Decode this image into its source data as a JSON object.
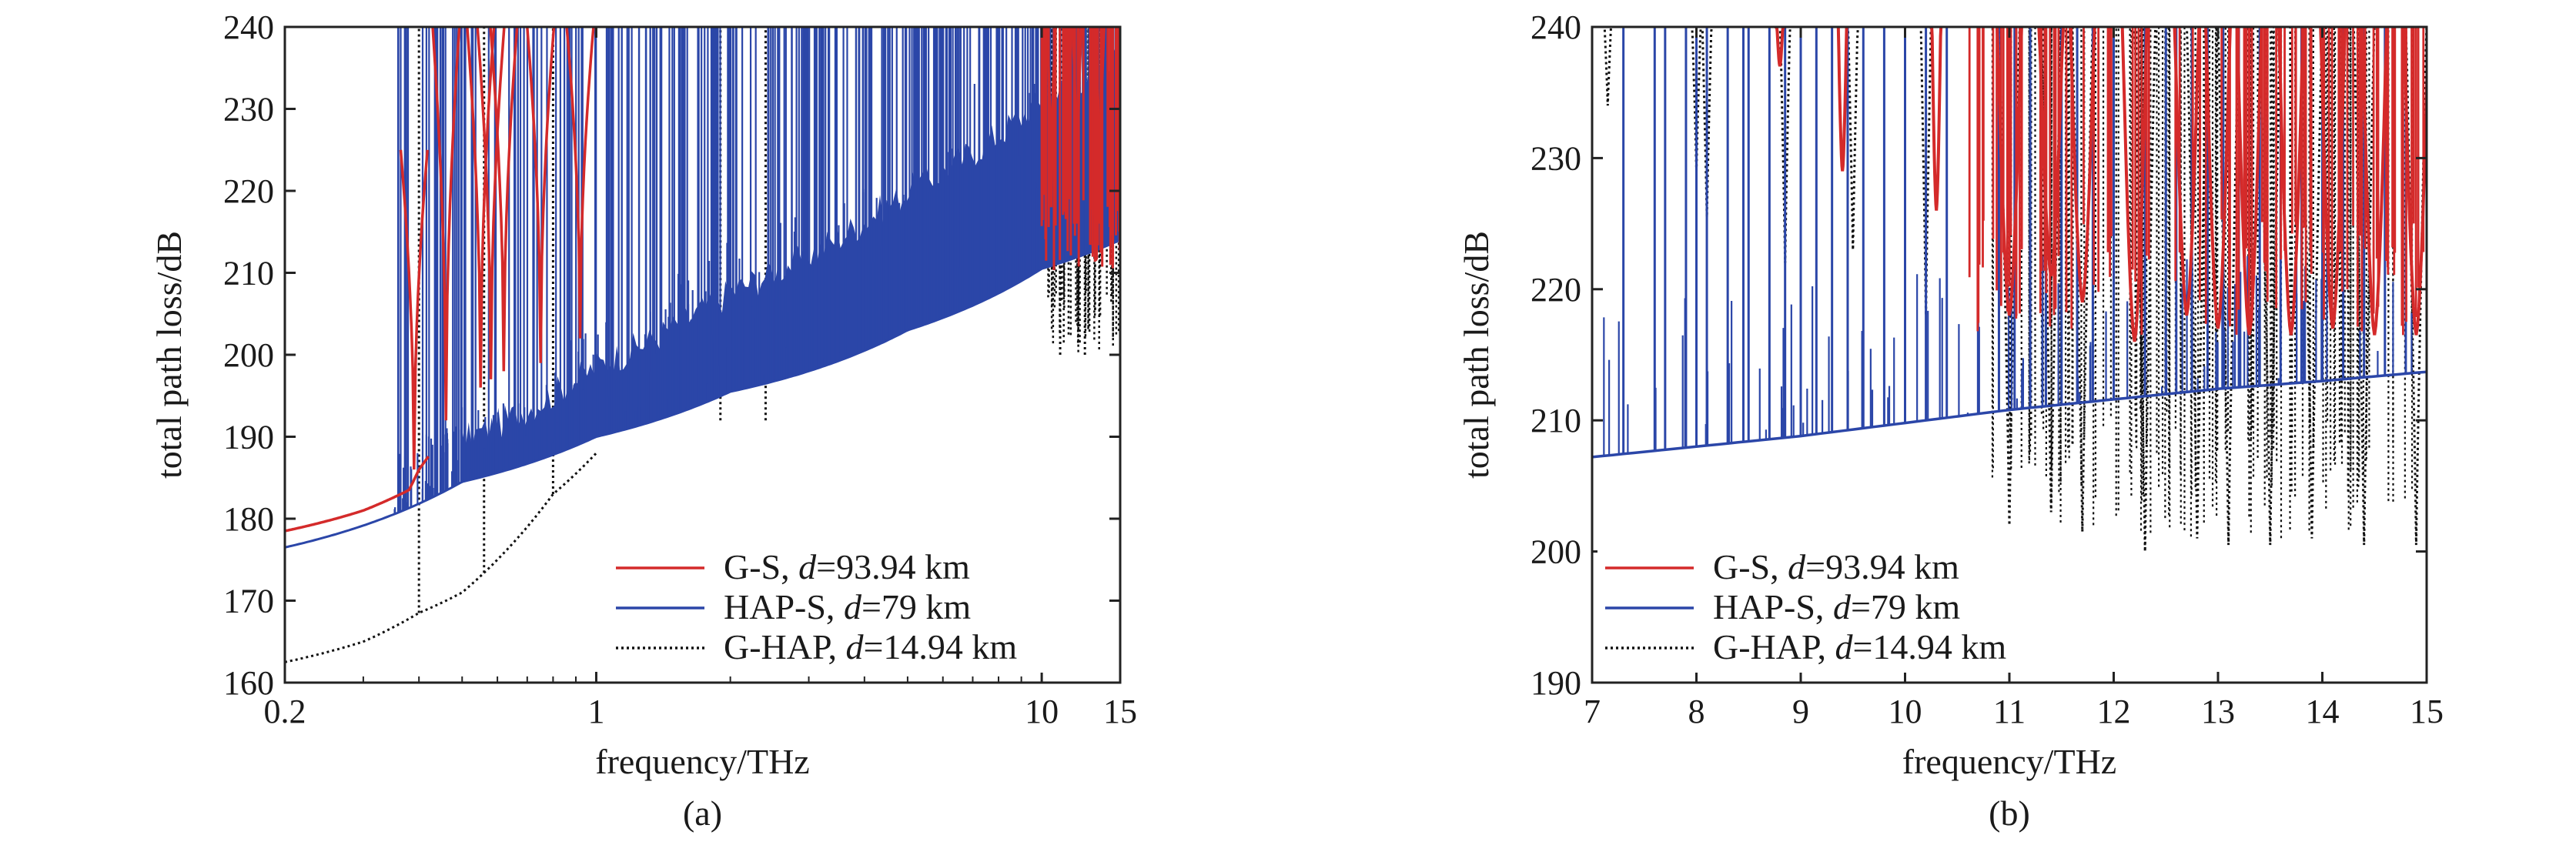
{
  "colors": {
    "gs": "#d42a2a",
    "haps": "#2b46a8",
    "ghap": "#111111",
    "axis": "#222222"
  },
  "chart_data": [
    {
      "type": "line",
      "panel": "(a)",
      "caption": "(a)",
      "xlabel": "frequency/THz",
      "ylabel": "total path loss/dB",
      "xscale": "log",
      "xlim": [
        0.2,
        15
      ],
      "ylim": [
        160,
        240
      ],
      "xticks": [
        0.2,
        1,
        10,
        15
      ],
      "xtick_labels": [
        "0.2",
        "1",
        "10",
        "15"
      ],
      "yticks": [
        160,
        170,
        180,
        190,
        200,
        210,
        220,
        230,
        240
      ],
      "ytick_labels": [
        "160",
        "170",
        "180",
        "190",
        "200",
        "210",
        "220",
        "230",
        "240"
      ],
      "legend_position": "lower-right",
      "legend": [
        {
          "prefix": "G-S, ",
          "ital": "d",
          "suffix": "=93.94 km",
          "series": "gs"
        },
        {
          "prefix": "HAP-S, ",
          "ital": "d",
          "suffix": "=79 km",
          "series": "haps"
        },
        {
          "prefix": "G-HAP, ",
          "ital": "d",
          "suffix": "=14.94 km",
          "series": "ghap"
        }
      ],
      "series": [
        {
          "key": "gs",
          "label": "G-S, d=93.94 km",
          "x": [
            0.2,
            0.3,
            0.38,
            0.4,
            0.45,
            0.5,
            0.52,
            0.55,
            0.6,
            0.65,
            0.7,
            0.75,
            0.8,
            0.85,
            0.9,
            1.0
          ],
          "y": [
            178.5,
            181,
            183.5,
            186,
            190,
            196,
            240,
            210,
            201,
            199,
            203,
            240,
            204,
            202,
            205,
            210
          ],
          "peaks": [
            {
              "x": 0.39,
              "base": 186,
              "top": 225
            },
            {
              "x": 0.46,
              "base": 192,
              "top": 240
            },
            {
              "x": 0.55,
              "base": 196,
              "top": 240
            },
            {
              "x": 0.58,
              "base": 197,
              "top": 240
            },
            {
              "x": 0.62,
              "base": 198,
              "top": 240
            },
            {
              "x": 0.75,
              "base": 199,
              "top": 240
            },
            {
              "x": 0.92,
              "base": 202,
              "top": 240
            },
            {
              "x": 10.5,
              "base": 218,
              "top": 240
            },
            {
              "x": 12.0,
              "base": 216,
              "top": 240
            },
            {
              "x": 13.5,
              "base": 216,
              "top": 240
            }
          ]
        },
        {
          "key": "haps",
          "label": "HAP-S, d=79 km",
          "x": [
            0.2,
            0.5,
            1.0,
            2.0,
            5.0,
            10.0,
            15.0
          ],
          "y": [
            176.5,
            184.5,
            190,
            195.5,
            203,
            210.5,
            214
          ],
          "spike_density": "dense",
          "spike_top": 240
        },
        {
          "key": "ghap",
          "label": "G-HAP, d=14.94 km",
          "x": [
            0.2,
            0.3,
            0.4,
            0.5,
            0.6,
            0.8,
            1.0
          ],
          "y": [
            162.5,
            165,
            168.5,
            171,
            175,
            183,
            188
          ],
          "dips": [
            {
              "x": 0.4,
              "top": 240
            },
            {
              "x": 0.56,
              "top": 240
            },
            {
              "x": 0.8,
              "top": 240
            },
            {
              "x": 1.9,
              "top": 240
            },
            {
              "x": 2.4,
              "top": 240
            },
            {
              "x": 11.0,
              "top": 240
            },
            {
              "x": 12.5,
              "top": 240
            }
          ]
        }
      ]
    },
    {
      "type": "line",
      "panel": "(b)",
      "caption": "(b)",
      "xlabel": "frequency/THz",
      "ylabel": "total path loss/dB",
      "xscale": "linear",
      "xlim": [
        7,
        15
      ],
      "ylim": [
        190,
        240
      ],
      "xticks": [
        7,
        8,
        9,
        10,
        11,
        12,
        13,
        14,
        15
      ],
      "xtick_labels": [
        "7",
        "8",
        "9",
        "10",
        "11",
        "12",
        "13",
        "14",
        "15"
      ],
      "yticks": [
        190,
        200,
        210,
        220,
        230,
        240
      ],
      "ytick_labels": [
        "190",
        "200",
        "210",
        "220",
        "230",
        "240"
      ],
      "legend_position": "lower-left",
      "legend": [
        {
          "prefix": "G-S, ",
          "ital": "d",
          "suffix": "=93.94 km",
          "series": "gs"
        },
        {
          "prefix": "HAP-S, ",
          "ital": "d",
          "suffix": "=79 km",
          "series": "haps"
        },
        {
          "prefix": "G-HAP, ",
          "ital": "d",
          "suffix": "=14.94 km",
          "series": "ghap"
        }
      ],
      "series": [
        {
          "key": "gs",
          "label": "G-S, d=93.94 km",
          "floor": [
            {
              "x": 8.8,
              "y": 237
            },
            {
              "x": 9.4,
              "y": 229
            },
            {
              "x": 10.3,
              "y": 226
            },
            {
              "x": 11.0,
              "y": 218
            },
            {
              "x": 11.4,
              "y": 221
            },
            {
              "x": 11.7,
              "y": 219
            },
            {
              "x": 12.2,
              "y": 216
            },
            {
              "x": 12.7,
              "y": 218
            },
            {
              "x": 13.0,
              "y": 217
            },
            {
              "x": 13.3,
              "y": 216.5
            },
            {
              "x": 13.7,
              "y": 216.5
            },
            {
              "x": 14.1,
              "y": 217
            },
            {
              "x": 14.5,
              "y": 216.5
            },
            {
              "x": 14.9,
              "y": 216.5
            }
          ]
        },
        {
          "key": "haps",
          "label": "HAP-S, d=79 km",
          "x": [
            7,
            8,
            9,
            10,
            11,
            12,
            13,
            14,
            15
          ],
          "y": [
            207.2,
            208,
            208.8,
            209.8,
            210.8,
            211.6,
            212.4,
            213,
            213.7
          ],
          "spikes": [
            7.3,
            7.6,
            7.7,
            7.9,
            8.0,
            8.1,
            8.3,
            8.45,
            8.5,
            8.7,
            8.85,
            9.0,
            9.15,
            9.3,
            9.45,
            9.6,
            9.8,
            10.0,
            10.2,
            10.4,
            10.7,
            10.9,
            11.05,
            11.2,
            11.35,
            11.5,
            11.65,
            11.8,
            12.0,
            12.3,
            12.5,
            12.6,
            12.75,
            12.9,
            13.05,
            13.2,
            13.4,
            13.6,
            13.8,
            14.0,
            14.2,
            14.4,
            14.6,
            14.8
          ]
        },
        {
          "key": "ghap",
          "label": "G-HAP, d=14.94 km",
          "dips": [
            {
              "x": 7.15,
              "y": 234
            },
            {
              "x": 8.0,
              "y": 229
            },
            {
              "x": 8.1,
              "y": 225.5
            },
            {
              "x": 8.85,
              "y": 222
            },
            {
              "x": 9.5,
              "y": 223
            },
            {
              "x": 10.2,
              "y": 218
            },
            {
              "x": 11.0,
              "y": 202
            },
            {
              "x": 11.4,
              "y": 203
            },
            {
              "x": 11.7,
              "y": 201.5
            },
            {
              "x": 12.3,
              "y": 200
            },
            {
              "x": 12.8,
              "y": 201
            },
            {
              "x": 13.1,
              "y": 200.5
            },
            {
              "x": 13.5,
              "y": 200.5
            },
            {
              "x": 13.9,
              "y": 201
            },
            {
              "x": 14.4,
              "y": 200.5
            },
            {
              "x": 14.9,
              "y": 200.5
            }
          ]
        }
      ]
    }
  ]
}
